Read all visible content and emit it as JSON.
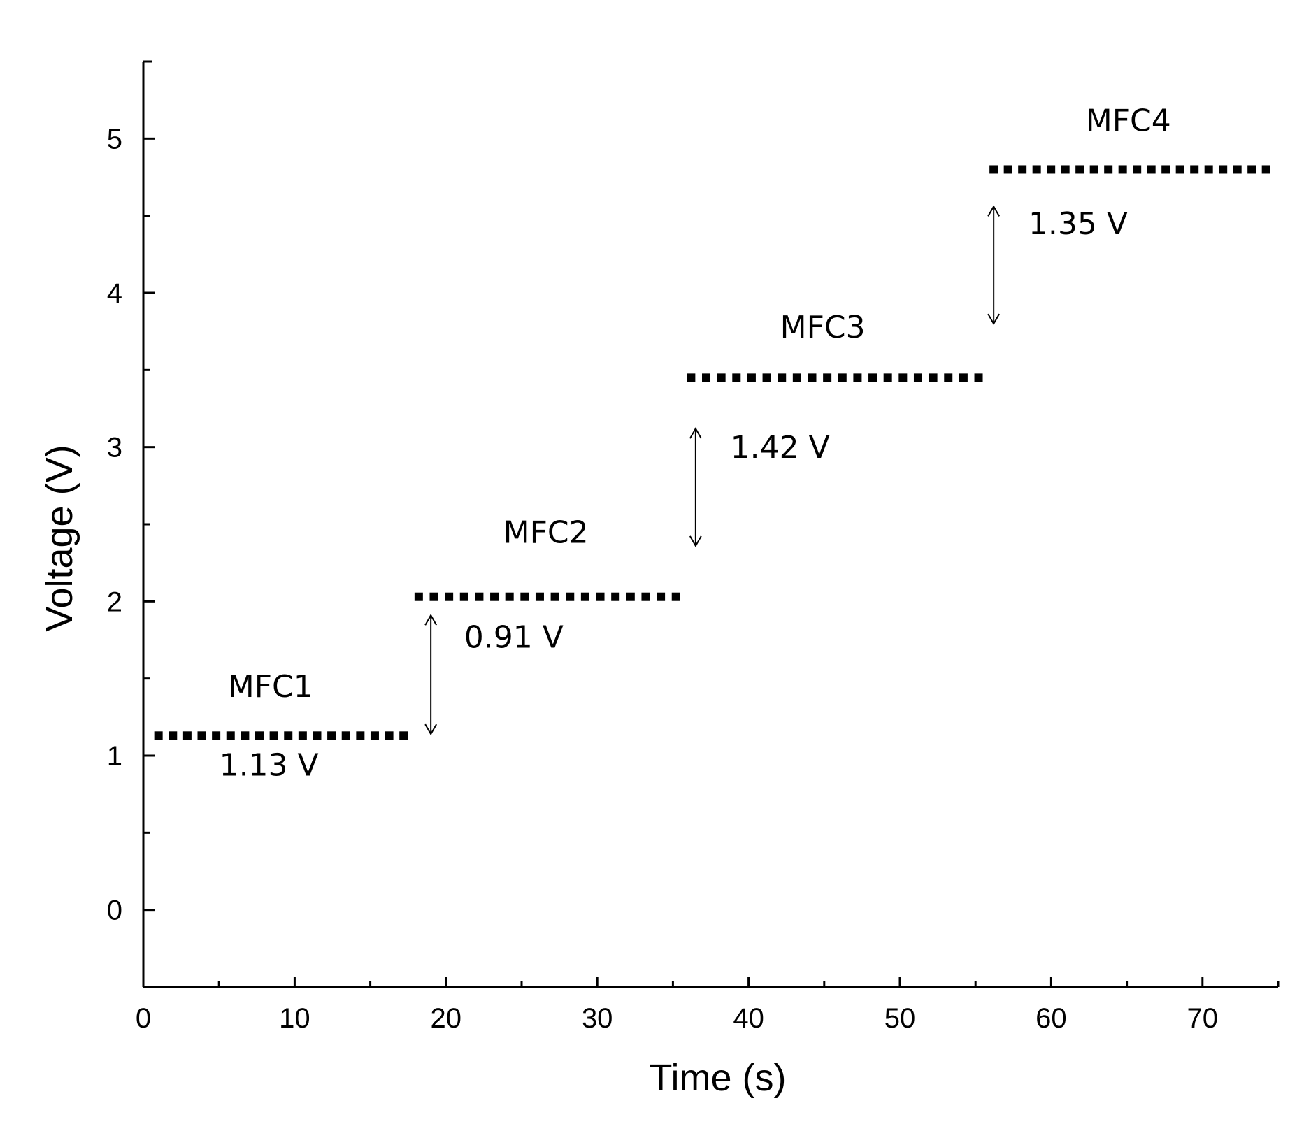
{
  "chart_data": {
    "type": "scatter",
    "title": "",
    "xlabel": "Time (s)",
    "ylabel": "Voltage (V)",
    "xlim": [
      0,
      75
    ],
    "ylim": [
      -0.5,
      5.5
    ],
    "xticks": [
      0,
      10,
      20,
      30,
      40,
      50,
      60,
      70
    ],
    "yticks": [
      0,
      1,
      2,
      3,
      4,
      5
    ],
    "grid": false,
    "series": [
      {
        "name": "MFC1",
        "x_start": 1,
        "x_end": 17.2,
        "count": 18,
        "value": 1.13
      },
      {
        "name": "MFC2",
        "x_start": 18.2,
        "x_end": 35.2,
        "count": 18,
        "value": 2.03
      },
      {
        "name": "MFC3",
        "x_start": 36.2,
        "x_end": 55.2,
        "count": 20,
        "value": 3.45
      },
      {
        "name": "MFC4",
        "x_start": 56.2,
        "x_end": 74.2,
        "count": 20,
        "value": 4.8
      }
    ],
    "labels": [
      {
        "text": "MFC1",
        "x": 8.4,
        "y": 1.38
      },
      {
        "text": "MFC2",
        "x": 26.6,
        "y": 2.38
      },
      {
        "text": "MFC3",
        "x": 44.9,
        "y": 3.71
      },
      {
        "text": "MFC4",
        "x": 65.1,
        "y": 5.05
      },
      {
        "text": "1.13 V",
        "x": 8.3,
        "y": 0.87
      }
    ],
    "gaps": [
      {
        "text": "0.91 V",
        "x": 19,
        "from": 1.14,
        "to": 1.91,
        "label_x": 21.2,
        "label_y": 1.7
      },
      {
        "text": "1.42 V",
        "x": 36.5,
        "from": 2.36,
        "to": 3.12,
        "label_x": 38.8,
        "label_y": 2.93
      },
      {
        "text": "1.35 V",
        "x": 56.2,
        "from": 3.8,
        "to": 4.56,
        "label_x": 58.5,
        "label_y": 4.38
      }
    ]
  }
}
